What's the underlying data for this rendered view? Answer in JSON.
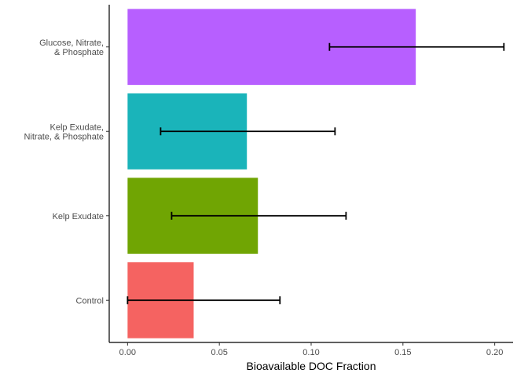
{
  "chart_data": {
    "type": "bar",
    "orientation": "horizontal",
    "xlabel": "Bioavailable DOC Fraction",
    "ylabel": "",
    "xlim": [
      -0.01,
      0.21
    ],
    "x_ticks": [
      0.0,
      0.05,
      0.1,
      0.15,
      0.2
    ],
    "x_tick_labels": [
      "0.00",
      "0.05",
      "0.10",
      "0.15",
      "0.20"
    ],
    "grid": false,
    "legend": "none",
    "categories": [
      {
        "lines": [
          "Glucose, Nitrate,",
          "& Phosphate"
        ]
      },
      {
        "lines": [
          "Kelp Exudate,",
          "Nitrate, & Phosphate"
        ]
      },
      {
        "lines": [
          "Kelp Exudate"
        ]
      },
      {
        "lines": [
          "Control"
        ]
      }
    ],
    "values": [
      0.157,
      0.065,
      0.071,
      0.036
    ],
    "error_low": [
      0.11,
      0.018,
      0.024,
      0.0
    ],
    "error_high": [
      0.205,
      0.113,
      0.119,
      0.083
    ],
    "colors": [
      "#B75FFF",
      "#1AB4BA",
      "#70A503",
      "#F56361"
    ]
  }
}
